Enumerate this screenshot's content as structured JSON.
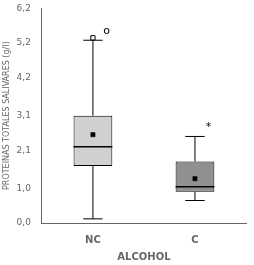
{
  "chart_data": {
    "type": "box",
    "xlabel": "ALCOHOL",
    "ylabel": "PROTEINAS TOTALES SALIVARES (g/l)",
    "categories": [
      "NC",
      "C"
    ],
    "boxes": [
      {
        "whislo": 0.12,
        "q1": 1.65,
        "med": 2.2,
        "mean": 2.55,
        "q3": 3.1,
        "whishi": 5.28,
        "fliers": [
          5.35
        ]
      },
      {
        "whislo": 0.65,
        "q1": 0.9,
        "med": 1.05,
        "mean": 1.28,
        "q3": 1.78,
        "whishi": 2.5,
        "fliers": []
      }
    ],
    "colors": [
      "#d0d0d0",
      "#909090"
    ],
    "ylim": [
      0.0,
      6.2
    ],
    "yticks": [
      {
        "value": 0.0,
        "label": "0,0"
      },
      {
        "value": 1.0,
        "label": "1,0"
      },
      {
        "value": 2.1,
        "label": "2,1"
      },
      {
        "value": 3.1,
        "label": "3,1"
      },
      {
        "value": 4.2,
        "label": "4,2"
      },
      {
        "value": 5.2,
        "label": "5,2"
      },
      {
        "value": 6.2,
        "label": "6,2"
      }
    ],
    "annotations": [
      {
        "text": "o",
        "category": "NC",
        "y": 5.38
      },
      {
        "text": "*",
        "category": "C",
        "y": 2.62
      }
    ],
    "grid": false
  }
}
